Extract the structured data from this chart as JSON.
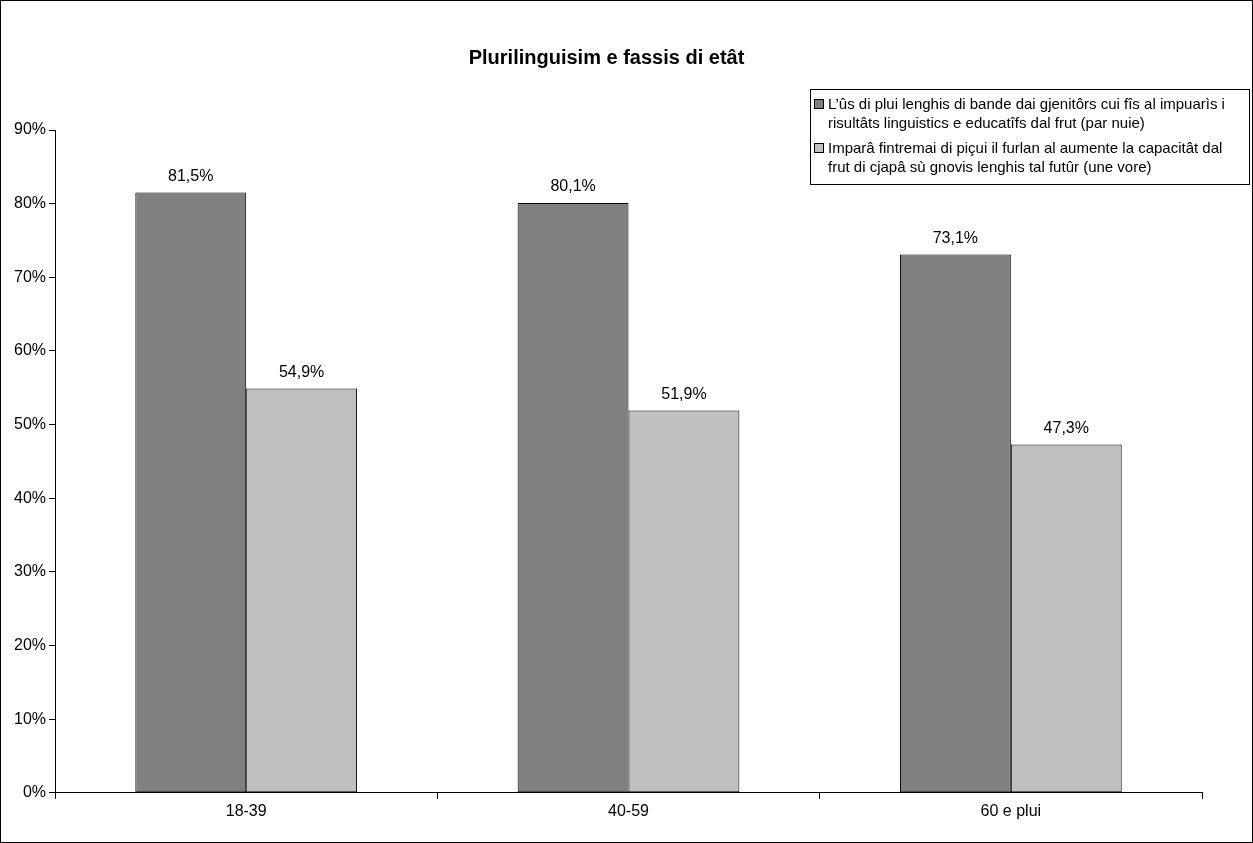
{
  "chart_data": {
    "type": "bar",
    "title": "Plurilinguisim e fassis di etât",
    "categories": [
      "18-39",
      "40-59",
      "60 e plui"
    ],
    "series": [
      {
        "name": "L’ûs di plui lenghis di bande dai gjenitôrs cui fîs al impuarìs i risultâts linguistics e educatîfs dal frut (par nuie)",
        "color": "#808080",
        "values": [
          81.5,
          80.1,
          73.1
        ],
        "value_labels": [
          "81,5%",
          "80,1%",
          "73,1%"
        ]
      },
      {
        "name": "Imparâ fintremai di piçui il furlan al aumente la capacitât dal frut di cjapâ sù gnovis lenghis tal futûr (une vore)",
        "color": "#c0c0c0",
        "values": [
          54.9,
          51.9,
          47.3
        ],
        "value_labels": [
          "54,9%",
          "51,9%",
          "47,3%"
        ]
      }
    ],
    "ylim": [
      0,
      90
    ],
    "yticks": [
      {
        "value": 0,
        "label": "0%"
      },
      {
        "value": 10,
        "label": "10%"
      },
      {
        "value": 20,
        "label": "20%"
      },
      {
        "value": 30,
        "label": "30%"
      },
      {
        "value": 40,
        "label": "40%"
      },
      {
        "value": 50,
        "label": "50%"
      },
      {
        "value": 60,
        "label": "60%"
      },
      {
        "value": 70,
        "label": "70%"
      },
      {
        "value": 80,
        "label": "80%"
      },
      {
        "value": 90,
        "label": "90%"
      }
    ],
    "grid": false,
    "legend": "top right"
  }
}
